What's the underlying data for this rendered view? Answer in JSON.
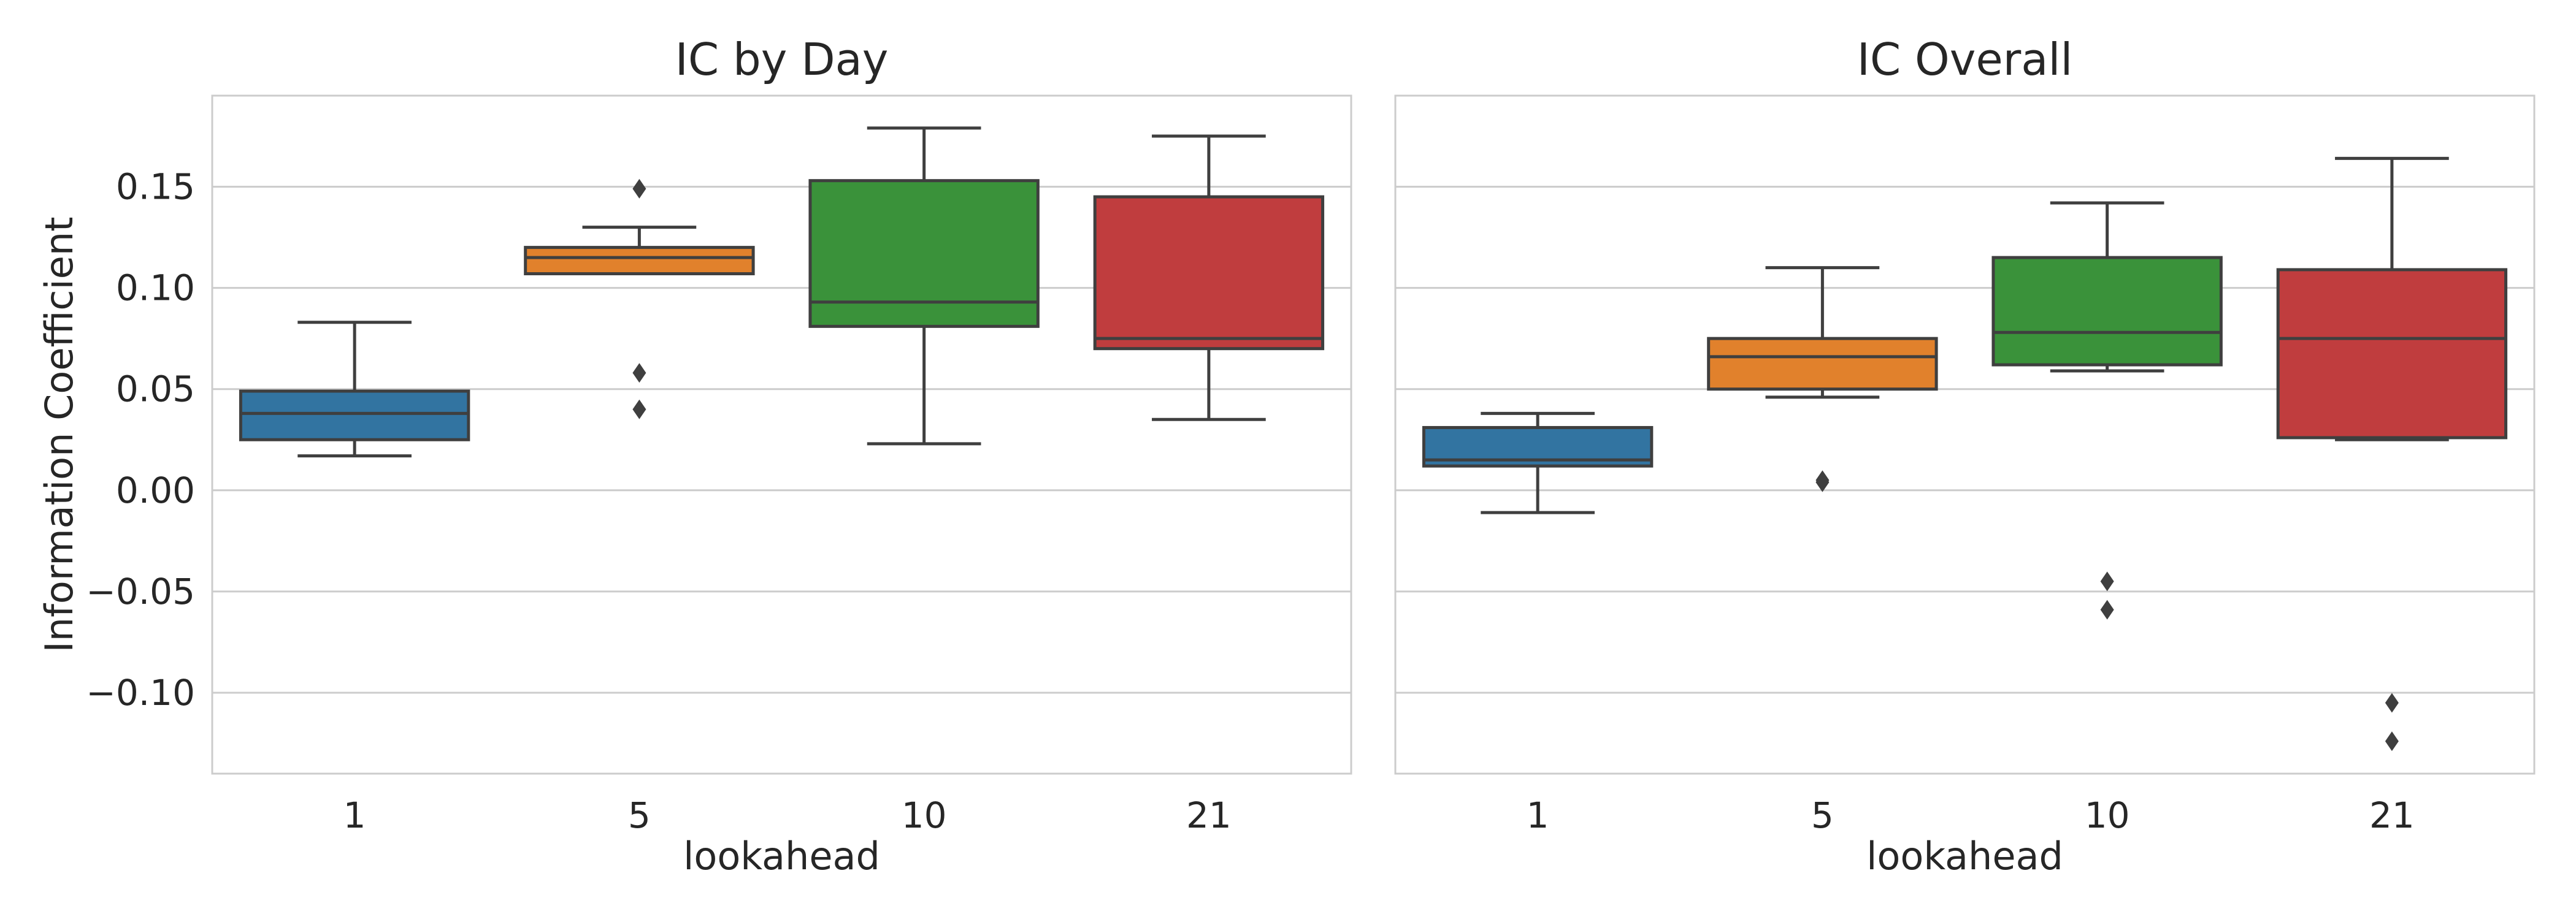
{
  "colors": {
    "series": [
      "#3274a1",
      "#e1812c",
      "#3a923a",
      "#c03d3e"
    ],
    "outline": "#3f3f3f",
    "grid": "#cccccc",
    "frame": "#cccccc",
    "text": "#262626"
  },
  "chart_data": [
    {
      "type": "box",
      "title": "IC by Day",
      "xlabel": "lookahead",
      "ylabel": "Information Coefficient",
      "categories": [
        "1",
        "5",
        "10",
        "21"
      ],
      "ylim": [
        -0.14,
        0.195
      ],
      "yticks": [
        -0.1,
        -0.05,
        0.0,
        0.05,
        0.1,
        0.15
      ],
      "ytick_labels": [
        "−0.10",
        "−0.05",
        "0.00",
        "0.05",
        "0.10",
        "0.15"
      ],
      "grid": true,
      "boxes": [
        {
          "category": "1",
          "whisker_low": 0.017,
          "q1": 0.025,
          "median": 0.038,
          "q3": 0.049,
          "whisker_high": 0.083,
          "outliers": []
        },
        {
          "category": "5",
          "whisker_low": 0.107,
          "q1": 0.107,
          "median": 0.115,
          "q3": 0.12,
          "whisker_high": 0.13,
          "outliers": [
            0.149,
            0.058,
            0.04
          ]
        },
        {
          "category": "10",
          "whisker_low": 0.023,
          "q1": 0.081,
          "median": 0.093,
          "q3": 0.153,
          "whisker_high": 0.179,
          "outliers": []
        },
        {
          "category": "21",
          "whisker_low": 0.035,
          "q1": 0.07,
          "median": 0.075,
          "q3": 0.145,
          "whisker_high": 0.175,
          "outliers": []
        }
      ]
    },
    {
      "type": "box",
      "title": "IC Overall",
      "xlabel": "lookahead",
      "ylabel": "",
      "categories": [
        "1",
        "5",
        "10",
        "21"
      ],
      "ylim": [
        -0.14,
        0.195
      ],
      "yticks": [
        -0.1,
        -0.05,
        0.0,
        0.05,
        0.1,
        0.15
      ],
      "ytick_labels": [],
      "grid": true,
      "boxes": [
        {
          "category": "1",
          "whisker_low": -0.011,
          "q1": 0.012,
          "median": 0.015,
          "q3": 0.031,
          "whisker_high": 0.038,
          "outliers": []
        },
        {
          "category": "5",
          "whisker_low": 0.046,
          "q1": 0.05,
          "median": 0.066,
          "q3": 0.075,
          "whisker_high": 0.11,
          "outliers": [
            0.005,
            0.004
          ]
        },
        {
          "category": "10",
          "whisker_low": 0.059,
          "q1": 0.062,
          "median": 0.078,
          "q3": 0.115,
          "whisker_high": 0.142,
          "outliers": [
            -0.045,
            -0.059
          ]
        },
        {
          "category": "21",
          "whisker_low": 0.025,
          "q1": 0.026,
          "median": 0.075,
          "q3": 0.109,
          "whisker_high": 0.164,
          "outliers": [
            -0.105,
            -0.124
          ]
        }
      ]
    }
  ]
}
